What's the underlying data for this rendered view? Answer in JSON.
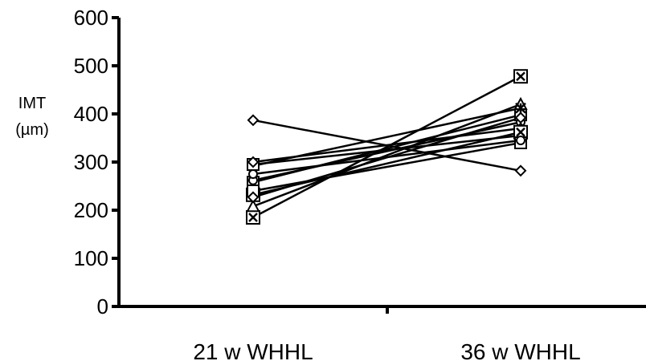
{
  "chart_data": {
    "type": "line",
    "title": "",
    "xlabel": "",
    "ylabel": [
      "IMT",
      "(µm)"
    ],
    "categories": [
      "21 w WHHL",
      "36 w WHHL"
    ],
    "ylim": [
      0,
      600
    ],
    "yticks": [
      0,
      100,
      200,
      300,
      400,
      500,
      600
    ],
    "grid": false,
    "legend": "none",
    "series": [
      {
        "marker": "diamond",
        "values": [
          387,
          282
        ]
      },
      {
        "marker": "square-x",
        "values": [
          185,
          478
        ]
      },
      {
        "marker": "triangle",
        "values": [
          208,
          420
        ]
      },
      {
        "marker": "square",
        "values": [
          258,
          398
        ]
      },
      {
        "marker": "circle",
        "values": [
          262,
          383
        ]
      },
      {
        "marker": "star",
        "values": [
          292,
          412
        ]
      },
      {
        "marker": "square",
        "values": [
          295,
          355
        ]
      },
      {
        "marker": "diamond",
        "values": [
          300,
          370
        ]
      },
      {
        "marker": "square-x",
        "values": [
          232,
          362
        ]
      },
      {
        "marker": "square",
        "values": [
          240,
          340
        ]
      },
      {
        "marker": "diamond",
        "values": [
          227,
          392
        ]
      },
      {
        "marker": "circle",
        "values": [
          275,
          345
        ]
      }
    ]
  }
}
